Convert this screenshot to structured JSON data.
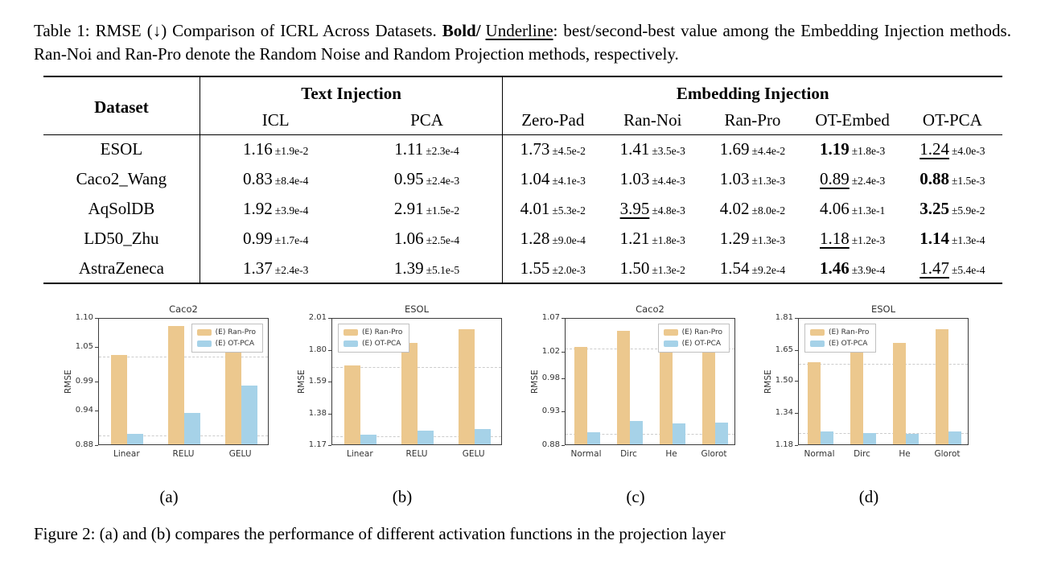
{
  "captions": {
    "table": {
      "part1": "Table 1: RMSE (↓) Comparison of ICRL Across Datasets. ",
      "bold": "Bold/",
      "underline": "Underline",
      "part2": ": best/second-best value among the Embedding Injection methods. Ran-Noi and Ran-Pro denote the Random Noise and Random Projection methods, respectively."
    },
    "figure_fragment": "Figure 2: (a) and (b) compares the performance of different activation functions in the projection layer"
  },
  "table": {
    "col_dataset": "Dataset",
    "group_text": "Text Injection",
    "group_embed": "Embedding Injection",
    "sub_headers": [
      "ICL",
      "PCA",
      "Zero-Pad",
      "Ran-Noi",
      "Ran-Pro",
      "OT-Embed",
      "OT-PCA"
    ],
    "rows": [
      {
        "dataset": "ESOL",
        "cells": [
          {
            "v": "1.16",
            "e": "±1.9e-2",
            "s": "n"
          },
          {
            "v": "1.11",
            "e": "±2.3e-4",
            "s": "n"
          },
          {
            "v": "1.73",
            "e": "±4.5e-2",
            "s": "n"
          },
          {
            "v": "1.41",
            "e": "±3.5e-3",
            "s": "n"
          },
          {
            "v": "1.69",
            "e": "±4.4e-2",
            "s": "n"
          },
          {
            "v": "1.19",
            "e": "±1.8e-3",
            "s": "b"
          },
          {
            "v": "1.24",
            "e": "±4.0e-3",
            "s": "u"
          }
        ]
      },
      {
        "dataset": "Caco2_Wang",
        "cells": [
          {
            "v": "0.83",
            "e": "±8.4e-4",
            "s": "n"
          },
          {
            "v": "0.95",
            "e": "±2.4e-3",
            "s": "n"
          },
          {
            "v": "1.04",
            "e": "±4.1e-3",
            "s": "n"
          },
          {
            "v": "1.03",
            "e": "±4.4e-3",
            "s": "n"
          },
          {
            "v": "1.03",
            "e": "±1.3e-3",
            "s": "n"
          },
          {
            "v": "0.89",
            "e": "±2.4e-3",
            "s": "u"
          },
          {
            "v": "0.88",
            "e": "±1.5e-3",
            "s": "b"
          }
        ]
      },
      {
        "dataset": "AqSolDB",
        "cells": [
          {
            "v": "1.92",
            "e": "±3.9e-4",
            "s": "n"
          },
          {
            "v": "2.91",
            "e": "±1.5e-2",
            "s": "n"
          },
          {
            "v": "4.01",
            "e": "±5.3e-2",
            "s": "n"
          },
          {
            "v": "3.95",
            "e": "±4.8e-3",
            "s": "u"
          },
          {
            "v": "4.02",
            "e": "±8.0e-2",
            "s": "n"
          },
          {
            "v": "4.06",
            "e": "±1.3e-1",
            "s": "n"
          },
          {
            "v": "3.25",
            "e": "±5.9e-2",
            "s": "b"
          }
        ]
      },
      {
        "dataset": "LD50_Zhu",
        "cells": [
          {
            "v": "0.99",
            "e": "±1.7e-4",
            "s": "n"
          },
          {
            "v": "1.06",
            "e": "±2.5e-4",
            "s": "n"
          },
          {
            "v": "1.28",
            "e": "±9.0e-4",
            "s": "n"
          },
          {
            "v": "1.21",
            "e": "±1.8e-3",
            "s": "n"
          },
          {
            "v": "1.29",
            "e": "±1.3e-3",
            "s": "n"
          },
          {
            "v": "1.18",
            "e": "±1.2e-3",
            "s": "u"
          },
          {
            "v": "1.14",
            "e": "±1.3e-4",
            "s": "b"
          }
        ]
      },
      {
        "dataset": "AstraZeneca",
        "cells": [
          {
            "v": "1.37",
            "e": "±2.4e-3",
            "s": "n"
          },
          {
            "v": "1.39",
            "e": "±5.1e-5",
            "s": "n"
          },
          {
            "v": "1.55",
            "e": "±2.0e-3",
            "s": "n"
          },
          {
            "v": "1.50",
            "e": "±1.3e-2",
            "s": "n"
          },
          {
            "v": "1.54",
            "e": "±9.2e-4",
            "s": "n"
          },
          {
            "v": "1.46",
            "e": "±3.9e-4",
            "s": "b"
          },
          {
            "v": "1.47",
            "e": "±5.4e-4",
            "s": "u"
          }
        ]
      }
    ]
  },
  "chart_data": [
    {
      "id": "a",
      "type": "bar",
      "title": "Caco2",
      "ylabel": "RMSE",
      "categories": [
        "Linear",
        "RELU",
        "GELU"
      ],
      "series": [
        {
          "name": "(E) Ran-Pro",
          "values": [
            1.035,
            1.085,
            1.048
          ]
        },
        {
          "name": "(E) OT-PCA",
          "values": [
            0.898,
            0.935,
            0.982
          ]
        }
      ],
      "ylim": [
        0.88,
        1.1
      ],
      "ytick_labels": [
        "0.88",
        "0.94",
        "0.99",
        "1.05",
        "1.10"
      ],
      "ytick_values": [
        0.88,
        0.94,
        0.99,
        1.05,
        1.1
      ],
      "ref_lines": [
        1.035,
        0.898
      ],
      "legend_pos": "top-right"
    },
    {
      "id": "b",
      "type": "bar",
      "title": "ESOL",
      "ylabel": "RMSE",
      "categories": [
        "Linear",
        "RELU",
        "GELU"
      ],
      "series": [
        {
          "name": "(E) Ran-Pro",
          "values": [
            1.69,
            1.84,
            1.93
          ]
        },
        {
          "name": "(E) OT-PCA",
          "values": [
            1.235,
            1.26,
            1.27
          ]
        }
      ],
      "ylim": [
        1.17,
        2.01
      ],
      "ytick_labels": [
        "1.17",
        "1.38",
        "1.59",
        "1.80",
        "2.01"
      ],
      "ytick_values": [
        1.17,
        1.38,
        1.59,
        1.8,
        2.01
      ],
      "ref_lines": [
        1.69,
        1.235
      ],
      "legend_pos": "top-left"
    },
    {
      "id": "c",
      "type": "bar",
      "title": "Caco2",
      "ylabel": "RMSE",
      "categories": [
        "Normal",
        "Dirc",
        "He",
        "Glorot"
      ],
      "series": [
        {
          "name": "(E) Ran-Pro",
          "values": [
            1.026,
            1.05,
            1.041,
            1.025
          ]
        },
        {
          "name": "(E) OT-PCA",
          "values": [
            0.898,
            0.915,
            0.911,
            0.913
          ]
        }
      ],
      "ylim": [
        0.88,
        1.07
      ],
      "ytick_labels": [
        "0.88",
        "0.93",
        "0.98",
        "1.02",
        "1.07"
      ],
      "ytick_values": [
        0.88,
        0.93,
        0.98,
        1.02,
        1.07
      ],
      "ref_lines": [
        1.026,
        0.898
      ],
      "legend_pos": "top-right"
    },
    {
      "id": "d",
      "type": "bar",
      "title": "ESOL",
      "ylabel": "RMSE",
      "categories": [
        "Normal",
        "Dirc",
        "He",
        "Glorot"
      ],
      "series": [
        {
          "name": "(E) Ran-Pro",
          "values": [
            1.585,
            1.685,
            1.682,
            1.752
          ]
        },
        {
          "name": "(E) OT-PCA",
          "values": [
            1.245,
            1.235,
            1.23,
            1.245
          ]
        }
      ],
      "ylim": [
        1.18,
        1.81
      ],
      "ytick_labels": [
        "1.18",
        "1.34",
        "1.50",
        "1.65",
        "1.81"
      ],
      "ytick_values": [
        1.18,
        1.34,
        1.5,
        1.65,
        1.81
      ],
      "ref_lines": [
        1.585,
        1.245
      ],
      "legend_pos": "top-left"
    }
  ],
  "sublabels": [
    "(a)",
    "(b)",
    "(c)",
    "(d)"
  ],
  "colors": {
    "bar_ran_pro": "#ECC88E",
    "bar_ot_pca": "#A6D2E8",
    "ref_line": "#cccccc",
    "axis": "#3c3c3c"
  }
}
